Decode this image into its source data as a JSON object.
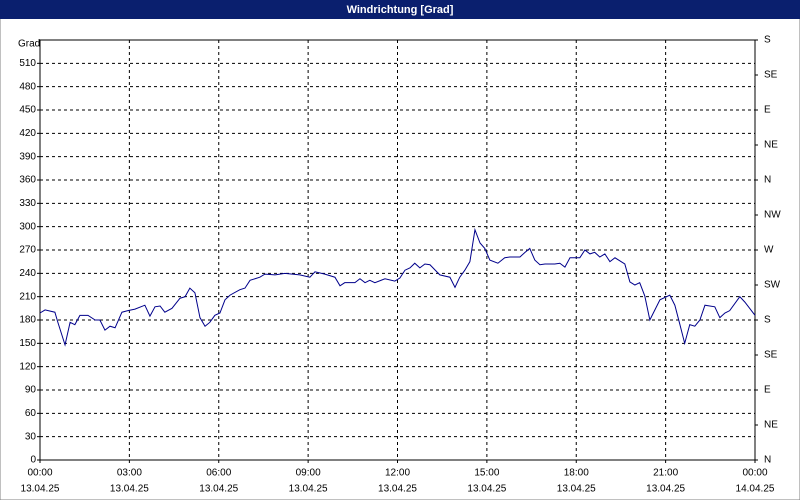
{
  "chart_data": {
    "type": "line",
    "title": "Windrichtung [Grad]",
    "y_label": "Grad",
    "x": [
      0,
      0.17,
      0.5,
      0.6,
      0.84,
      1.01,
      1.17,
      1.34,
      1.61,
      1.85,
      2.01,
      2.18,
      2.35,
      2.52,
      2.75,
      2.95,
      3.19,
      3.52,
      3.69,
      3.86,
      4.03,
      4.19,
      4.43,
      4.7,
      4.87,
      5.03,
      5.2,
      5.37,
      5.54,
      5.7,
      5.87,
      6.04,
      6.21,
      6.38,
      6.71,
      6.88,
      7.05,
      7.38,
      7.55,
      7.89,
      8.22,
      8.72,
      9.06,
      9.23,
      9.56,
      9.9,
      10.07,
      10.23,
      10.57,
      10.74,
      10.91,
      11.07,
      11.24,
      11.58,
      11.91,
      12.08,
      12.25,
      12.42,
      12.58,
      12.75,
      12.92,
      13.09,
      13.42,
      13.76,
      13.93,
      14.09,
      14.26,
      14.43,
      14.6,
      14.77,
      14.93,
      15.1,
      15.37,
      15.6,
      15.77,
      16.11,
      16.28,
      16.44,
      16.61,
      16.78,
      16.95,
      17.28,
      17.45,
      17.62,
      17.79,
      18.12,
      18.29,
      18.46,
      18.62,
      18.79,
      18.96,
      19.13,
      19.3,
      19.63,
      19.8,
      19.97,
      20.13,
      20.3,
      20.47,
      20.64,
      20.81,
      21.14,
      21.31,
      21.48,
      21.64,
      21.81,
      21.98,
      22.15,
      22.32,
      22.65,
      22.82,
      22.99,
      23.15,
      23.49,
      23.66,
      24
    ],
    "series": [
      {
        "name": "Windrichtung",
        "color": "#00008b",
        "values": [
          189,
          193,
          190,
          177,
          148,
          177,
          174,
          186,
          186,
          180,
          180,
          167,
          172,
          170,
          190,
          192,
          194,
          199,
          185,
          197,
          198,
          190,
          195,
          208,
          210,
          221,
          215,
          183,
          172,
          177,
          186,
          189,
          206,
          212,
          219,
          221,
          231,
          235,
          239,
          238,
          240,
          238,
          235,
          242,
          239,
          235,
          224,
          228,
          228,
          233,
          228,
          231,
          228,
          233,
          230,
          234,
          244,
          247,
          253,
          247,
          252,
          251,
          238,
          235,
          222,
          235,
          244,
          255,
          296,
          279,
          272,
          257,
          253,
          260,
          261,
          261,
          267,
          272,
          257,
          251,
          252,
          252,
          253,
          248,
          260,
          260,
          270,
          265,
          267,
          261,
          265,
          255,
          260,
          252,
          229,
          225,
          228,
          211,
          180,
          193,
          206,
          212,
          199,
          174,
          150,
          174,
          172,
          180,
          199,
          197,
          183,
          189,
          192,
          210,
          203,
          186
        ]
      }
    ],
    "xlim": [
      0,
      24
    ],
    "xticks": [
      {
        "value": 0,
        "label": "00:00"
      },
      {
        "value": 3,
        "label": "03:00"
      },
      {
        "value": 6,
        "label": "06:00"
      },
      {
        "value": 9,
        "label": "09:00"
      },
      {
        "value": 12,
        "label": "12:00"
      },
      {
        "value": 15,
        "label": "15:00"
      },
      {
        "value": 18,
        "label": "18:00"
      },
      {
        "value": 21,
        "label": "21:00"
      },
      {
        "value": 24,
        "label": "00:00"
      }
    ],
    "xtick_dates": [
      "13.04.25",
      "13.04.25",
      "13.04.25",
      "13.04.25",
      "13.04.25",
      "13.04.25",
      "13.04.25",
      "13.04.25",
      "14.04.25"
    ],
    "ylim": [
      0,
      540
    ],
    "yticks": [
      0,
      30,
      60,
      90,
      120,
      150,
      180,
      210,
      240,
      270,
      300,
      330,
      360,
      390,
      420,
      450,
      480,
      510
    ],
    "y2lim": [
      0,
      540
    ],
    "y2ticks": [
      {
        "value": 0,
        "label": "N"
      },
      {
        "value": 45,
        "label": "NE"
      },
      {
        "value": 90,
        "label": "E"
      },
      {
        "value": 135,
        "label": "SE"
      },
      {
        "value": 180,
        "label": "S"
      },
      {
        "value": 225,
        "label": "SW"
      },
      {
        "value": 270,
        "label": "W"
      },
      {
        "value": 315,
        "label": "NW"
      },
      {
        "value": 360,
        "label": "N"
      },
      {
        "value": 405,
        "label": "NE"
      },
      {
        "value": 450,
        "label": "E"
      },
      {
        "value": 495,
        "label": "SE"
      },
      {
        "value": 540,
        "label": "S"
      }
    ],
    "grid": true
  }
}
